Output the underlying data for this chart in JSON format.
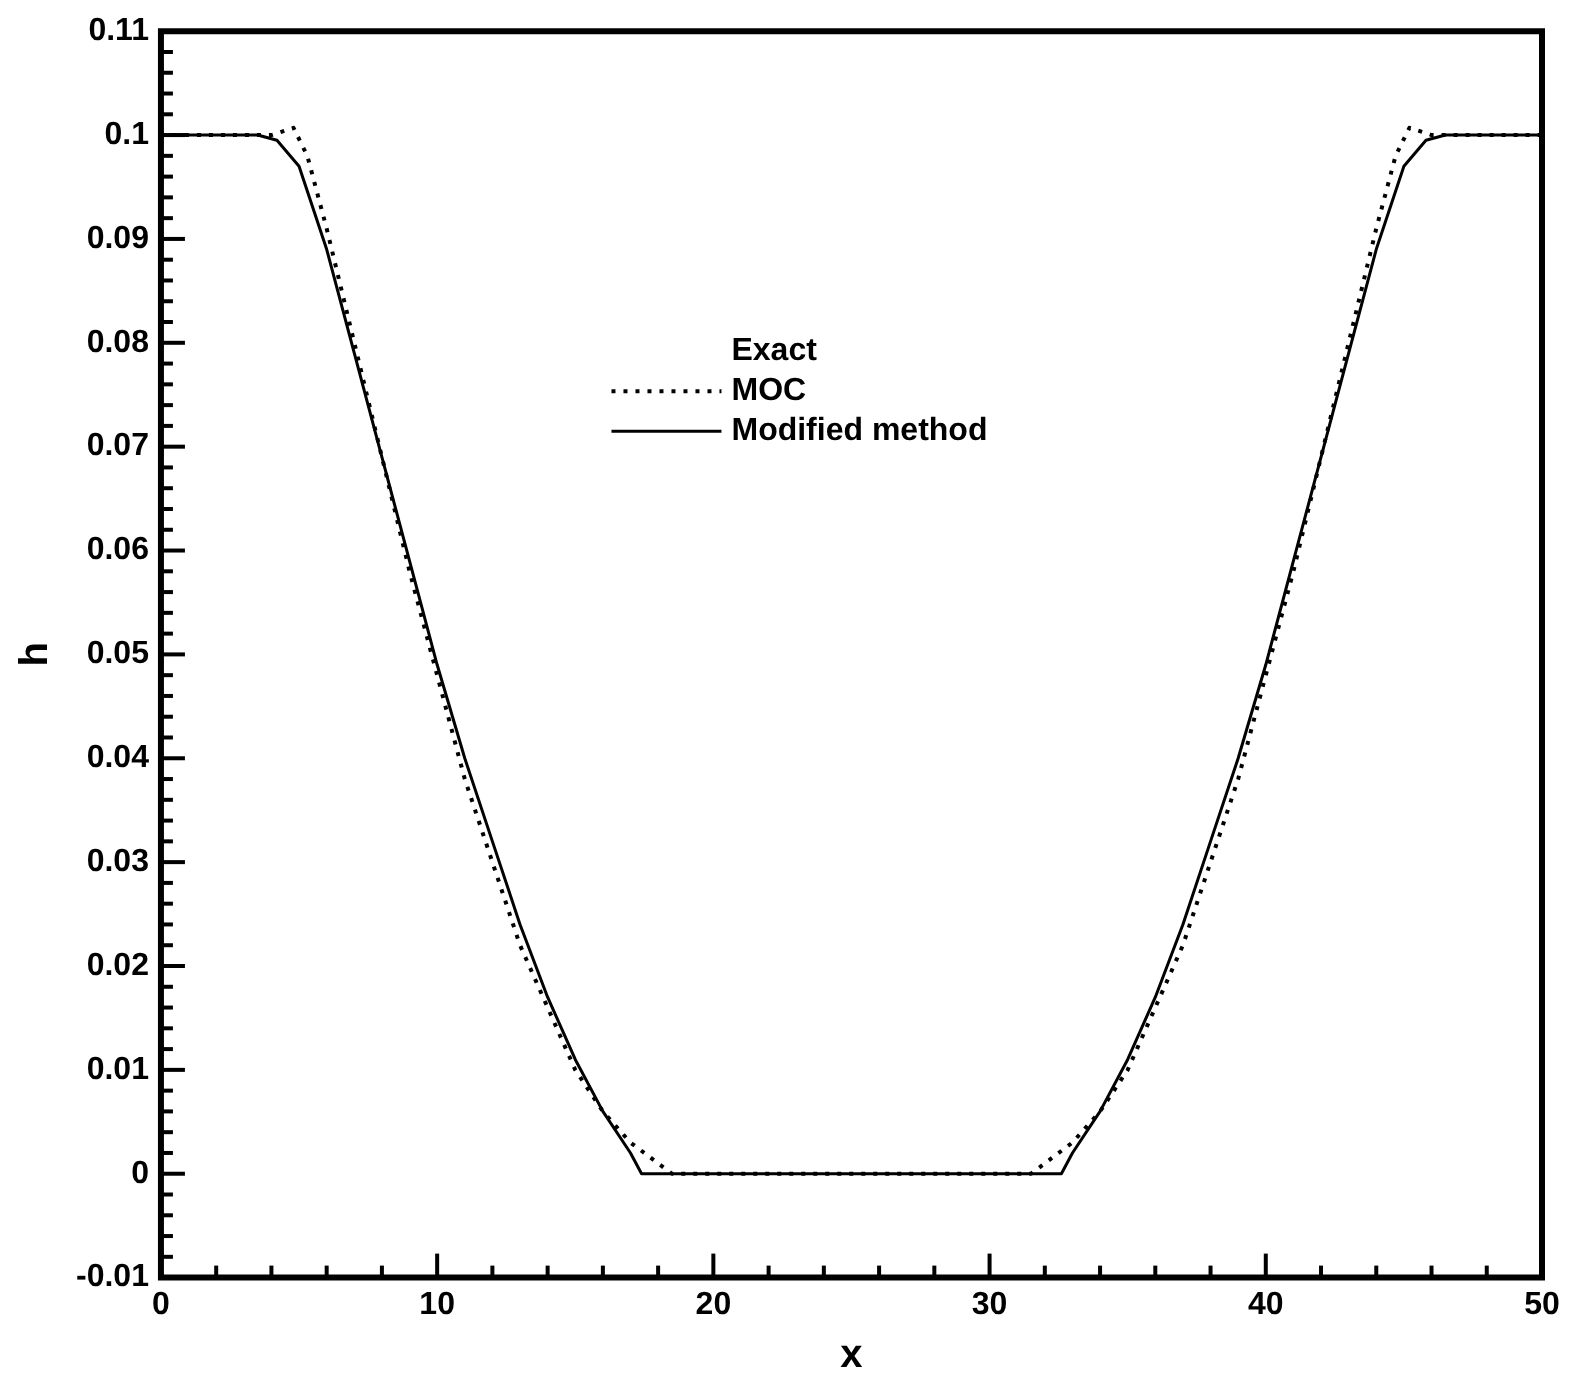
{
  "chart_data": {
    "type": "line",
    "xlabel": "x",
    "ylabel": "h",
    "legend_title": "Exact",
    "legend": "top",
    "grid": false,
    "marker": "none",
    "xlim": [
      0,
      50
    ],
    "ylim": [
      -0.01,
      0.11
    ],
    "xticks": [
      0,
      {
        "value": 2,
        "label": null
      },
      {
        "value": 4,
        "label": null
      },
      {
        "value": 6,
        "label": null
      },
      {
        "value": 8,
        "label": null
      },
      10,
      {
        "value": 12,
        "label": null
      },
      {
        "value": 14,
        "label": null
      },
      {
        "value": 16,
        "label": null
      },
      {
        "value": 18,
        "label": null
      },
      20,
      {
        "value": 22,
        "label": null
      },
      {
        "value": 24,
        "label": null
      },
      {
        "value": 26,
        "label": null
      },
      {
        "value": 28,
        "label": null
      },
      30,
      {
        "value": 32,
        "label": null
      },
      {
        "value": 34,
        "label": null
      },
      {
        "value": 36,
        "label": null
      },
      {
        "value": 38,
        "label": null
      },
      40,
      {
        "value": 42,
        "label": null
      },
      {
        "value": 44,
        "label": null
      },
      {
        "value": 46,
        "label": null
      },
      {
        "value": 48,
        "label": null
      },
      50
    ],
    "yticks": [
      -0.01,
      {
        "value": -0.008,
        "label": null
      },
      {
        "value": -0.006,
        "label": null
      },
      {
        "value": -0.004,
        "label": null
      },
      {
        "value": -0.002,
        "label": null
      },
      0,
      {
        "value": 0.002,
        "label": null
      },
      {
        "value": 0.004,
        "label": null
      },
      {
        "value": 0.006,
        "label": null
      },
      {
        "value": 0.008,
        "label": null
      },
      0.01,
      {
        "value": 0.012,
        "label": null
      },
      {
        "value": 0.014,
        "label": null
      },
      {
        "value": 0.016,
        "label": null
      },
      {
        "value": 0.018,
        "label": null
      },
      0.02,
      {
        "value": 0.022,
        "label": null
      },
      {
        "value": 0.024,
        "label": null
      },
      {
        "value": 0.026,
        "label": null
      },
      {
        "value": 0.028,
        "label": null
      },
      0.03,
      {
        "value": 0.032,
        "label": null
      },
      {
        "value": 0.034,
        "label": null
      },
      {
        "value": 0.036,
        "label": null
      },
      {
        "value": 0.038,
        "label": null
      },
      0.04,
      {
        "value": 0.042,
        "label": null
      },
      {
        "value": 0.044,
        "label": null
      },
      {
        "value": 0.046,
        "label": null
      },
      {
        "value": 0.048,
        "label": null
      },
      0.05,
      {
        "value": 0.052,
        "label": null
      },
      {
        "value": 0.054,
        "label": null
      },
      {
        "value": 0.056,
        "label": null
      },
      {
        "value": 0.058,
        "label": null
      },
      0.06,
      {
        "value": 0.062,
        "label": null
      },
      {
        "value": 0.064,
        "label": null
      },
      {
        "value": 0.066,
        "label": null
      },
      {
        "value": 0.068,
        "label": null
      },
      0.07,
      {
        "value": 0.072,
        "label": null
      },
      {
        "value": 0.074,
        "label": null
      },
      {
        "value": 0.076,
        "label": null
      },
      {
        "value": 0.078,
        "label": null
      },
      0.08,
      {
        "value": 0.082,
        "label": null
      },
      {
        "value": 0.084,
        "label": null
      },
      {
        "value": 0.086,
        "label": null
      },
      {
        "value": 0.088,
        "label": null
      },
      0.09,
      {
        "value": 0.092,
        "label": null
      },
      {
        "value": 0.094,
        "label": null
      },
      {
        "value": 0.096,
        "label": null
      },
      {
        "value": 0.098,
        "label": null
      },
      0.1,
      {
        "value": 0.102,
        "label": null
      },
      {
        "value": 0.104,
        "label": null
      },
      {
        "value": 0.106,
        "label": null
      },
      {
        "value": 0.108,
        "label": null
      },
      0.11
    ],
    "series": [
      {
        "name": "MOC",
        "color": "#000000",
        "line_style": "dotted",
        "x": [
          0,
          4,
          4.8,
          5.3,
          6,
          7,
          8,
          9,
          10,
          11,
          12,
          13,
          14,
          15,
          16,
          17,
          18,
          18.5,
          31.5,
          32,
          33,
          34,
          35,
          36,
          37,
          38,
          39,
          40,
          41,
          42,
          43,
          44,
          44.7,
          45.2,
          46,
          50
        ],
        "values": [
          0.1,
          0.1,
          0.1007,
          0.098,
          0.091,
          0.08,
          0.069,
          0.058,
          0.048,
          0.038,
          0.03,
          0.022,
          0.016,
          0.01,
          0.006,
          0.003,
          0.001,
          0,
          0,
          0.001,
          0.003,
          0.006,
          0.01,
          0.016,
          0.022,
          0.03,
          0.038,
          0.048,
          0.058,
          0.069,
          0.08,
          0.091,
          0.098,
          0.1007,
          0.1,
          0.1
        ]
      },
      {
        "name": "Modified method",
        "color": "#000000",
        "line_style": "solid",
        "x": [
          0,
          3.5,
          4.2,
          5,
          6,
          7,
          8,
          9,
          10,
          11,
          12,
          13,
          14,
          15,
          16,
          17,
          17.4,
          32.6,
          33,
          34,
          35,
          36,
          37,
          38,
          39,
          40,
          41,
          42,
          43,
          44,
          45,
          45.8,
          46.5,
          50
        ],
        "values": [
          0.1,
          0.1,
          0.0995,
          0.097,
          0.089,
          0.079,
          0.069,
          0.059,
          0.049,
          0.04,
          0.032,
          0.024,
          0.017,
          0.011,
          0.006,
          0.002,
          0,
          0,
          0.002,
          0.006,
          0.011,
          0.017,
          0.024,
          0.032,
          0.04,
          0.049,
          0.059,
          0.069,
          0.079,
          0.089,
          0.097,
          0.0995,
          0.1,
          0.1
        ]
      }
    ]
  }
}
